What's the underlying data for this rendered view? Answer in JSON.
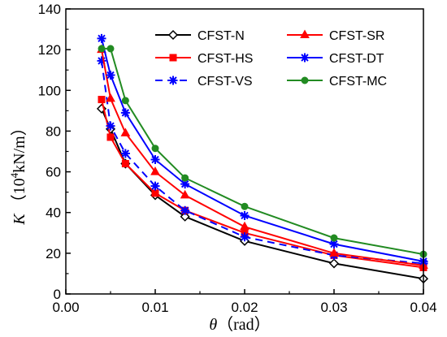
{
  "chart_data": {
    "type": "line",
    "xlabel": {
      "symbol": "θ",
      "unit": "（rad）"
    },
    "ylabel": {
      "symbol": "K",
      "unit_open": "（10",
      "unit_exp": "4",
      "unit_rest": "kN/m）"
    },
    "xlim": [
      0.0,
      0.04
    ],
    "ylim": [
      0,
      140
    ],
    "xticks": [
      0.0,
      0.01,
      0.02,
      0.03,
      0.04
    ],
    "xtick_labels": [
      "0.00",
      "0.01",
      "0.02",
      "0.03",
      "0.04"
    ],
    "yticks": [
      0,
      20,
      40,
      60,
      80,
      100,
      120,
      140
    ],
    "ytick_labels": [
      "0",
      "20",
      "40",
      "60",
      "80",
      "100",
      "120",
      "140"
    ],
    "grid": false,
    "legend_position": "top-right",
    "series": [
      {
        "name": "CFST-N",
        "color": "#000000",
        "marker": "diamond",
        "dash": "solid",
        "x": [
          0.004,
          0.005,
          0.00667,
          0.01,
          0.01333,
          0.02,
          0.03,
          0.04
        ],
        "y": [
          91,
          81,
          64,
          48.5,
          38,
          26,
          15,
          7.5
        ]
      },
      {
        "name": "CFST-SR",
        "color": "#ff0000",
        "marker": "triangle",
        "dash": "solid",
        "x": [
          0.004,
          0.005,
          0.00667,
          0.01,
          0.01333,
          0.02,
          0.03,
          0.04
        ],
        "y": [
          120,
          96,
          79,
          60,
          48.5,
          33,
          20,
          14
        ]
      },
      {
        "name": "CFST-HS",
        "color": "#ff0000",
        "marker": "square",
        "dash": "solid",
        "x": [
          0.004,
          0.005,
          0.00667,
          0.01,
          0.01333,
          0.02,
          0.03,
          0.04
        ],
        "y": [
          95.5,
          77,
          64,
          49.5,
          41,
          30,
          19,
          13
        ]
      },
      {
        "name": "CFST-DT",
        "color": "#0000ff",
        "marker": "asterisk",
        "dash": "solid",
        "x": [
          0.004,
          0.005,
          0.00667,
          0.01,
          0.01333,
          0.02,
          0.03,
          0.04
        ],
        "y": [
          125.5,
          107.5,
          89,
          66,
          54,
          38.5,
          24.5,
          16
        ]
      },
      {
        "name": "CFST-VS",
        "color": "#0000ff",
        "marker": "asterisk",
        "dash": "dashed",
        "x": [
          0.004,
          0.005,
          0.00667,
          0.01,
          0.01333,
          0.02,
          0.03,
          0.04
        ],
        "y": [
          114.5,
          82.5,
          69,
          53,
          41,
          28,
          19,
          15
        ]
      },
      {
        "name": "CFST-MC",
        "color": "#228b22",
        "marker": "circle",
        "dash": "solid",
        "x": [
          0.004,
          0.005,
          0.00667,
          0.01,
          0.01333,
          0.02,
          0.03,
          0.04
        ],
        "y": [
          120.5,
          120.5,
          95,
          71.5,
          57,
          43,
          27.5,
          19.5
        ]
      }
    ]
  }
}
